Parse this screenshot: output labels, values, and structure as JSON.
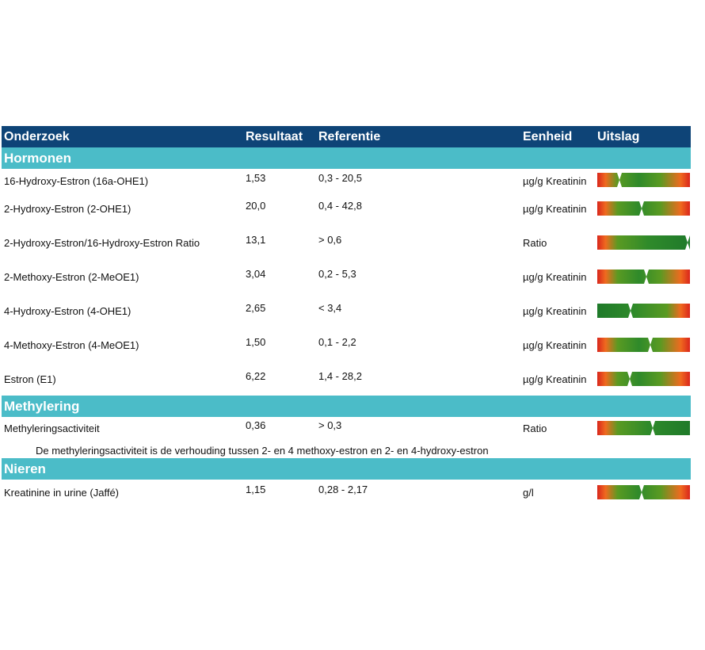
{
  "header": {
    "col_test": "Onderzoek",
    "col_result": "Resultaat",
    "col_reference": "Referentie",
    "col_unit": "Eenheid",
    "col_outcome": "Uitslag"
  },
  "sections": [
    {
      "title": "Hormonen",
      "rows": [
        {
          "name": "16-Hydroxy-Estron (16a-OHE1)",
          "result": "1,53",
          "reference": "0,3 - 20,5",
          "unit": "µg/g Kreatinin",
          "scale": "low-normal-high",
          "marker": 0.24
        },
        {
          "name": "2-Hydroxy-Estron (2-OHE1)",
          "result": "20,0",
          "reference": "0,4 - 42,8",
          "unit": "µg/g Kreatinin",
          "scale": "low-normal-high",
          "marker": 0.48
        },
        {
          "name": "2-Hydroxy-Estron/16-Hydroxy-Estron Ratio",
          "result": "13,1",
          "reference": "> 0,6",
          "unit": "Ratio",
          "scale": "low-normal",
          "marker": 1.0
        },
        {
          "name": "2-Methoxy-Estron (2-MeOE1)",
          "result": "3,04",
          "reference": "0,2 - 5,3",
          "unit": "µg/g Kreatinin",
          "scale": "low-normal-high",
          "marker": 0.53
        },
        {
          "name": "4-Hydroxy-Estron (4-OHE1)",
          "result": "2,65",
          "reference": "< 3,4",
          "unit": "µg/g Kreatinin",
          "scale": "normal-high",
          "marker": 0.36
        },
        {
          "name": "4-Methoxy-Estron (4-MeOE1)",
          "result": "1,50",
          "reference": "0,1 - 2,2",
          "unit": "µg/g Kreatinin",
          "scale": "low-normal-high",
          "marker": 0.57
        },
        {
          "name": "Estron (E1)",
          "result": "6,22",
          "reference": "1,4 - 28,2",
          "unit": "µg/g Kreatinin",
          "scale": "low-normal-high",
          "marker": 0.35
        }
      ]
    },
    {
      "title": "Methylering",
      "rows": [
        {
          "name": "Methyleringsactiviteit",
          "result": "0,36",
          "reference": "> 0,3",
          "unit": "Ratio",
          "scale": "low-normal",
          "marker": 0.6
        }
      ],
      "note": "De methyleringsactiviteit is de verhouding tussen 2- en 4 methoxy-estron en 2- en 4-hydroxy-estron"
    },
    {
      "title": "Nieren",
      "rows": [
        {
          "name": "Kreatinine in urine (Jaffé)",
          "result": "1,15",
          "reference": "0,28 - 2,17",
          "unit": "g/l",
          "scale": "low-normal-high",
          "marker": 0.48
        }
      ]
    }
  ],
  "colors": {
    "header": "#0e4477",
    "section": "#4bbcc8",
    "text": "#111111"
  }
}
